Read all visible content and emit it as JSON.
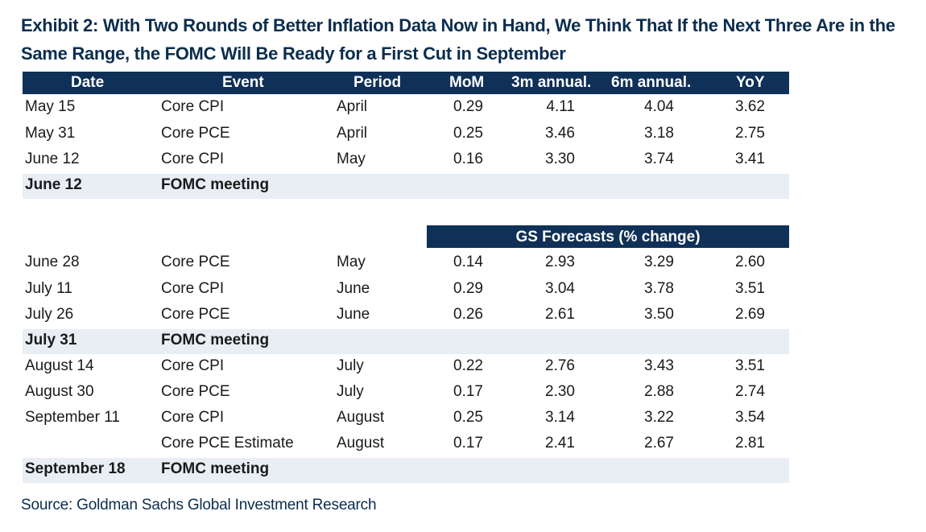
{
  "title": "Exhibit 2: With Two Rounds of Better Inflation Data Now in Hand, We Think That If the Next Three Are in the Same Range, the FOMC Will Be Ready for a First Cut in September",
  "headers": {
    "date": "Date",
    "event": "Event",
    "period": "Period",
    "mom": "MoM",
    "ann3m": "3m annual.",
    "ann6m": "6m annual.",
    "yoy": "YoY"
  },
  "forecast_label": "GS Forecasts (% change)",
  "actual_rows": [
    {
      "date": "May 15",
      "event": "Core CPI",
      "period": "April",
      "mom": "0.29",
      "ann3m": "4.11",
      "ann6m": "4.04",
      "yoy": "3.62"
    },
    {
      "date": "May 31",
      "event": "Core PCE",
      "period": "April",
      "mom": "0.25",
      "ann3m": "3.46",
      "ann6m": "3.18",
      "yoy": "2.75"
    },
    {
      "date": "June 12",
      "event": "Core CPI",
      "period": "May",
      "mom": "0.16",
      "ann3m": "3.30",
      "ann6m": "3.74",
      "yoy": "3.41"
    }
  ],
  "meeting_june": {
    "date": "June 12",
    "event": "FOMC meeting"
  },
  "forecast_rows_a": [
    {
      "date": "June 28",
      "event": "Core PCE",
      "period": "May",
      "mom": "0.14",
      "ann3m": "2.93",
      "ann6m": "3.29",
      "yoy": "2.60"
    },
    {
      "date": "July 11",
      "event": "Core CPI",
      "period": "June",
      "mom": "0.29",
      "ann3m": "3.04",
      "ann6m": "3.78",
      "yoy": "3.51"
    },
    {
      "date": "July 26",
      "event": "Core PCE",
      "period": "June",
      "mom": "0.26",
      "ann3m": "2.61",
      "ann6m": "3.50",
      "yoy": "2.69"
    }
  ],
  "meeting_july": {
    "date": "July 31",
    "event": "FOMC meeting"
  },
  "forecast_rows_b": [
    {
      "date": "August 14",
      "event": "Core CPI",
      "period": "July",
      "mom": "0.22",
      "ann3m": "2.76",
      "ann6m": "3.43",
      "yoy": "3.51"
    },
    {
      "date": "August 30",
      "event": "Core PCE",
      "period": "July",
      "mom": "0.17",
      "ann3m": "2.30",
      "ann6m": "2.88",
      "yoy": "2.74"
    },
    {
      "date": "September 11",
      "event": "Core CPI",
      "period": "August",
      "mom": "0.25",
      "ann3m": "3.14",
      "ann6m": "3.22",
      "yoy": "3.54"
    },
    {
      "date": "",
      "event": "Core PCE Estimate",
      "period": "August",
      "mom": "0.17",
      "ann3m": "2.41",
      "ann6m": "2.67",
      "yoy": "2.81"
    }
  ],
  "meeting_sept": {
    "date": "September 18",
    "event": "FOMC meeting"
  },
  "source": "Source: Goldman Sachs Global Investment Research"
}
